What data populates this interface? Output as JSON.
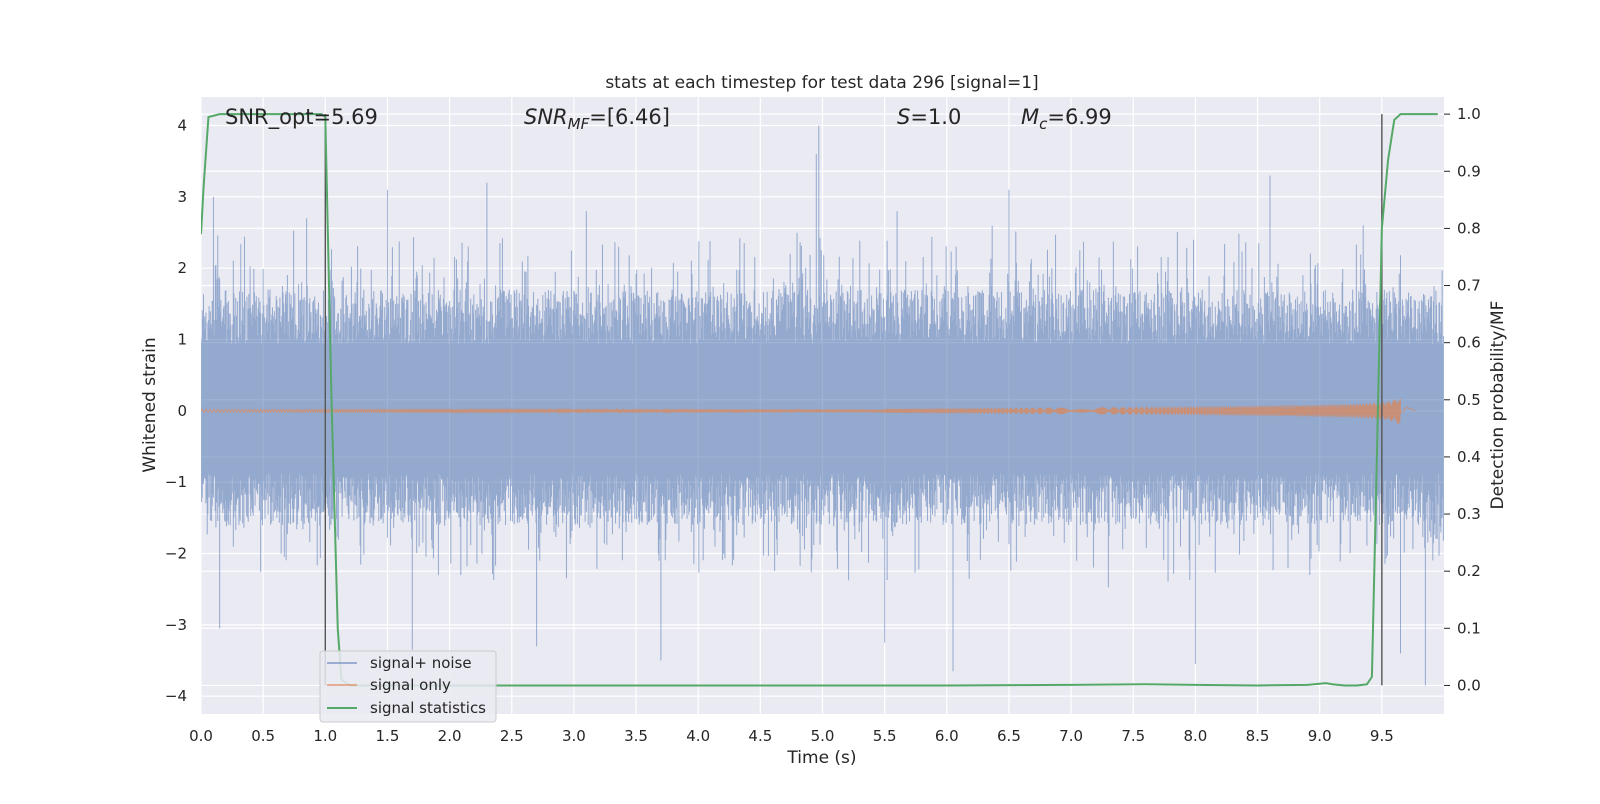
{
  "chart_data": {
    "type": "line",
    "title": "stats at each timestep for test data 296 [signal=1]",
    "xlabel": "Time (s)",
    "ylabel": "Whitened strain",
    "ylabel_right": "Detection probability/MF",
    "xlim": [
      0.0,
      10.0
    ],
    "ylim": [
      -4.25,
      4.4
    ],
    "ylim_right": [
      -0.05,
      1.03
    ],
    "xticks": [
      "0.0",
      "0.5",
      "1.0",
      "1.5",
      "2.0",
      "2.5",
      "3.0",
      "3.5",
      "4.0",
      "4.5",
      "5.0",
      "5.5",
      "6.0",
      "6.5",
      "7.0",
      "7.5",
      "8.0",
      "8.5",
      "9.0",
      "9.5"
    ],
    "xtick_values": [
      0.0,
      0.5,
      1.0,
      1.5,
      2.0,
      2.5,
      3.0,
      3.5,
      4.0,
      4.5,
      5.0,
      5.5,
      6.0,
      6.5,
      7.0,
      7.5,
      8.0,
      8.5,
      9.0,
      9.5
    ],
    "yticks": [
      "4",
      "3",
      "2",
      "1",
      "0",
      "−1",
      "−2",
      "−3",
      "−4"
    ],
    "ytick_values": [
      4,
      3,
      2,
      1,
      0,
      -1,
      -2,
      -3,
      -4
    ],
    "yticks_right": [
      "1.0",
      "0.9",
      "0.8",
      "0.7",
      "0.6",
      "0.5",
      "0.4",
      "0.3",
      "0.2",
      "0.1",
      "0.0"
    ],
    "ytick_right_values": [
      1.0,
      0.9,
      0.8,
      0.7,
      0.6,
      0.5,
      0.4,
      0.3,
      0.2,
      0.1,
      0.0
    ],
    "grid": true,
    "legend_position": "lower-left",
    "annotations": {
      "snr_opt": "SNR_opt=5.69",
      "snr_mf_sym": "SNR",
      "snr_mf_sub": "MF",
      "snr_mf_val": "=[6.46]",
      "s_sym": "S",
      "s_val": "=1.0",
      "mc_sym": "M",
      "mc_sub": "c",
      "mc_val": "=6.99"
    },
    "vlines": [
      1.0,
      9.5
    ],
    "series": [
      {
        "name": "signal+ noise",
        "color": "#4c72b0",
        "kind": "noise",
        "typical_envelope": [
          -1.6,
          1.7
        ],
        "peaks": [
          [
            0.1,
            3.0
          ],
          [
            0.85,
            2.7
          ],
          [
            1.5,
            3.1
          ],
          [
            2.3,
            3.2
          ],
          [
            3.1,
            2.8
          ],
          [
            4.97,
            4.0
          ],
          [
            4.95,
            3.6
          ],
          [
            5.6,
            2.8
          ],
          [
            6.5,
            3.1
          ],
          [
            8.6,
            3.3
          ],
          [
            9.35,
            2.6
          ],
          [
            0.15,
            -3.05
          ],
          [
            1.7,
            -3.35
          ],
          [
            2.7,
            -3.3
          ],
          [
            3.7,
            -3.5
          ],
          [
            5.5,
            -3.25
          ],
          [
            6.05,
            -3.65
          ],
          [
            8.0,
            -3.55
          ],
          [
            9.85,
            -3.85
          ],
          [
            9.65,
            -3.4
          ]
        ]
      },
      {
        "name": "signal only",
        "color": "#dd8452",
        "kind": "chirp",
        "t_start": 5.5,
        "t_merger": 9.65,
        "peak_amplitude": 0.55
      },
      {
        "name": "signal statistics",
        "color": "#55a868",
        "kind": "line",
        "axis": "right",
        "x": [
          0.0,
          0.02,
          0.06,
          0.15,
          0.3,
          0.6,
          0.9,
          0.97,
          1.0,
          1.05,
          1.1,
          1.13,
          1.2,
          1.5,
          2.0,
          3.0,
          4.0,
          5.0,
          6.0,
          7.0,
          7.6,
          8.0,
          8.5,
          8.9,
          9.0,
          9.05,
          9.1,
          9.2,
          9.3,
          9.38,
          9.42,
          9.46,
          9.5,
          9.55,
          9.6,
          9.65,
          9.7,
          9.8,
          9.95
        ],
        "y": [
          0.79,
          0.87,
          0.995,
          1.0,
          1.0,
          1.0,
          1.0,
          1.0,
          0.995,
          0.5,
          0.1,
          0.01,
          0.0,
          0.0,
          0.0,
          0.0,
          0.0,
          0.0,
          0.0,
          0.001,
          0.002,
          0.001,
          0.0,
          0.001,
          0.003,
          0.004,
          0.002,
          0.0,
          0.0,
          0.002,
          0.015,
          0.4,
          0.8,
          0.92,
          0.99,
          1.0,
          1.0,
          1.0,
          1.0
        ]
      }
    ]
  }
}
